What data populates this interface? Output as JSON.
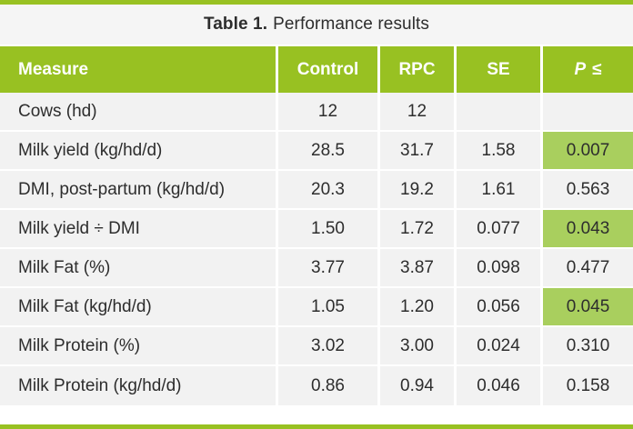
{
  "title": {
    "bold": "Table 1.",
    "rest": "Performance results"
  },
  "colors": {
    "accent_green": "#98c122",
    "highlight_green": "#a9cf5e",
    "row_bg": "#f2f2f2",
    "title_bg": "#f5f5f5",
    "header_text": "#ffffff",
    "body_text": "#2d2d2d"
  },
  "table": {
    "header": {
      "measure": "Measure",
      "control": "Control",
      "rpc": "RPC",
      "se": "SE",
      "p_symbol": "P",
      "p_operator": "≤"
    },
    "rows": [
      {
        "measure": "Cows (hd)",
        "control": "12",
        "rpc": "12",
        "se": "",
        "p": "",
        "p_highlight": false
      },
      {
        "measure": "Milk yield (kg/hd/d)",
        "control": "28.5",
        "rpc": "31.7",
        "se": "1.58",
        "p": "0.007",
        "p_highlight": true
      },
      {
        "measure": "DMI, post-partum (kg/hd/d)",
        "control": "20.3",
        "rpc": "19.2",
        "se": "1.61",
        "p": "0.563",
        "p_highlight": false
      },
      {
        "measure": "Milk yield ÷ DMI",
        "control": "1.50",
        "rpc": "1.72",
        "se": "0.077",
        "p": "0.043",
        "p_highlight": true
      },
      {
        "measure": "Milk Fat (%)",
        "control": "3.77",
        "rpc": "3.87",
        "se": "0.098",
        "p": "0.477",
        "p_highlight": false
      },
      {
        "measure": "Milk Fat (kg/hd/d)",
        "control": "1.05",
        "rpc": "1.20",
        "se": "0.056",
        "p": "0.045",
        "p_highlight": true
      },
      {
        "measure": "Milk Protein (%)",
        "control": "3.02",
        "rpc": "3.00",
        "se": "0.024",
        "p": "0.310",
        "p_highlight": false
      },
      {
        "measure": "Milk Protein (kg/hd/d)",
        "control": "0.86",
        "rpc": "0.94",
        "se": "0.046",
        "p": "0.158",
        "p_highlight": false
      }
    ]
  }
}
